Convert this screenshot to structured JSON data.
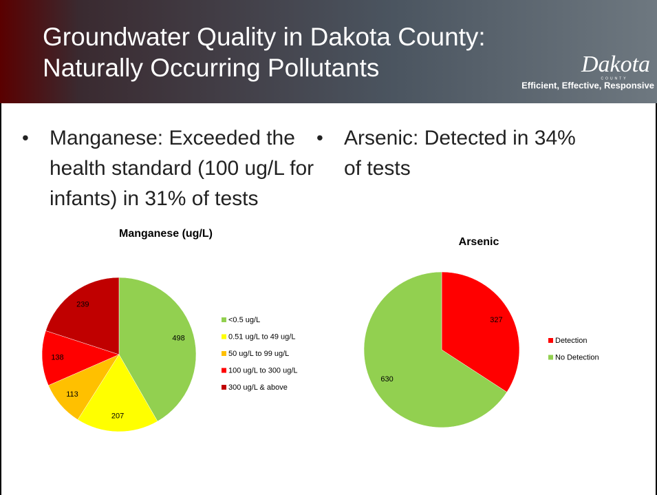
{
  "header": {
    "title_lines": [
      "Groundwater Quality in Dakota County:",
      "Naturally Occurring Pollutants"
    ],
    "logo": "Dakota",
    "logo_sub": "COUNTY",
    "tagline": "Efficient, Effective, Responsive"
  },
  "bullets": [
    [
      "Manganese:  Exceeded the",
      "health standard (100 ug/L for",
      "infants) in 31% of tests"
    ],
    [
      "Arsenic: Detected in 34%",
      "of tests"
    ]
  ],
  "chart_data": [
    {
      "type": "pie",
      "title": "Manganese  (ug/L)",
      "categories": [
        "<0.5 ug/L",
        "0.51 ug/L to 49 ug/L",
        "50 ug/L to 99 ug/L",
        "100 ug/L to 300 ug/L",
        "300 ug/L & above"
      ],
      "values": [
        498,
        207,
        113,
        138,
        239
      ],
      "colors": [
        "#92d050",
        "#ffff00",
        "#ffc000",
        "#ff0000",
        "#c00000"
      ]
    },
    {
      "type": "pie",
      "title": "Arsenic",
      "categories": [
        "Detection",
        "No Detection"
      ],
      "values": [
        327,
        630
      ],
      "colors": [
        "#ff0000",
        "#92d050"
      ]
    }
  ]
}
